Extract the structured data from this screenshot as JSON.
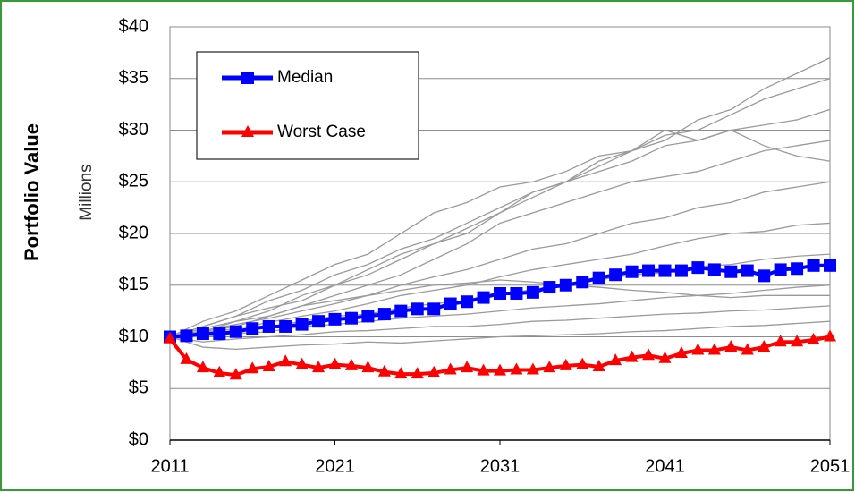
{
  "chart_data": {
    "type": "line",
    "y_label": "Portfolio Value",
    "y_unit_label": "Millions",
    "x": [
      2011,
      2012,
      2013,
      2014,
      2015,
      2016,
      2017,
      2018,
      2019,
      2020,
      2021,
      2022,
      2023,
      2024,
      2025,
      2026,
      2027,
      2028,
      2029,
      2030,
      2031,
      2032,
      2033,
      2034,
      2035,
      2036,
      2037,
      2038,
      2039,
      2040,
      2041,
      2042,
      2043,
      2044,
      2045,
      2046,
      2047,
      2048,
      2049,
      2050,
      2051
    ],
    "series": [
      {
        "name": "Median",
        "color": "#0000ff",
        "marker": "square",
        "values": [
          10,
          10.1,
          10.3,
          10.3,
          10.5,
          10.8,
          11,
          11,
          11.2,
          11.5,
          11.7,
          11.8,
          12,
          12.2,
          12.5,
          12.7,
          12.7,
          13.2,
          13.4,
          13.8,
          14.2,
          14.2,
          14.3,
          14.8,
          15,
          15.3,
          15.7,
          16,
          16.3,
          16.4,
          16.4,
          16.4,
          16.7,
          16.5,
          16.3,
          16.4,
          15.9,
          16.5,
          16.6,
          16.9,
          16.9
        ]
      },
      {
        "name": "Worst Case",
        "color": "#ff0000",
        "marker": "triangle",
        "values": [
          9.8,
          7.8,
          7,
          6.5,
          6.3,
          6.9,
          7.1,
          7.6,
          7.3,
          7,
          7.3,
          7.2,
          7,
          6.6,
          6.4,
          6.4,
          6.5,
          6.8,
          7,
          6.7,
          6.7,
          6.8,
          6.8,
          7,
          7.2,
          7.3,
          7.1,
          7.7,
          8,
          8.2,
          7.9,
          8.4,
          8.7,
          8.7,
          9,
          8.7,
          9,
          9.5,
          9.5,
          9.7,
          10
        ]
      }
    ],
    "simulations": {
      "color": "#9a9a9a",
      "x": [
        2011,
        2013,
        2015,
        2017,
        2019,
        2021,
        2023,
        2025,
        2027,
        2029,
        2031,
        2033,
        2035,
        2037,
        2039,
        2041,
        2043,
        2045,
        2047,
        2049,
        2051
      ],
      "series": [
        [
          10,
          11,
          12,
          13.5,
          14.5,
          16,
          17,
          18.5,
          19.5,
          21,
          22.5,
          24,
          25,
          26.5,
          28,
          29,
          31,
          32,
          34,
          35.5,
          37
        ],
        [
          10,
          10.8,
          11.5,
          12.5,
          14,
          15,
          16.5,
          18,
          19,
          20,
          22,
          23.5,
          25,
          27,
          28,
          29.5,
          30,
          31.5,
          33,
          34,
          35
        ],
        [
          10,
          11,
          12,
          12.8,
          13.5,
          15,
          16,
          17.5,
          19,
          20.5,
          22,
          24,
          25,
          26,
          27,
          28.5,
          29,
          30,
          30.5,
          31,
          32
        ],
        [
          10,
          10.5,
          11.5,
          12,
          13,
          14,
          15,
          16,
          17.5,
          19,
          21,
          22,
          23,
          24,
          25,
          25.5,
          26,
          27,
          28,
          28.5,
          29
        ],
        [
          10,
          10.6,
          11.2,
          11.8,
          12.5,
          13.2,
          14,
          15,
          15.8,
          16.5,
          17.5,
          18.5,
          19,
          20,
          21,
          21.5,
          22.5,
          23,
          24,
          24.5,
          25
        ],
        [
          10,
          10.4,
          10.8,
          11.4,
          12,
          12.5,
          13.2,
          14,
          14.5,
          15,
          15.8,
          16.5,
          17,
          17.5,
          18,
          18.8,
          19.5,
          20,
          20.2,
          20.8,
          21
        ],
        [
          10,
          10.2,
          10.6,
          11,
          11.5,
          12,
          12.2,
          12.8,
          13.2,
          13.5,
          14,
          14.6,
          15,
          15.5,
          16,
          16.2,
          16.8,
          17,
          17.5,
          17.8,
          18
        ],
        [
          10,
          10,
          10.3,
          10.5,
          11,
          11.2,
          11.5,
          11.8,
          12,
          12.2,
          12.5,
          12.8,
          13,
          13.2,
          13.5,
          13.8,
          14,
          14.2,
          14.5,
          14.8,
          15
        ],
        [
          10,
          9.5,
          9.8,
          10,
          10.2,
          10.5,
          10.6,
          10.8,
          11,
          11,
          11.2,
          11.5,
          11.6,
          11.8,
          12,
          12.2,
          12.3,
          12.5,
          12.6,
          12.8,
          13
        ],
        [
          10,
          9,
          8.8,
          9,
          9.2,
          9.3,
          9.5,
          9.4,
          9.6,
          9.8,
          10,
          10.1,
          10.2,
          10.3,
          10.5,
          10.6,
          10.8,
          11,
          11.1,
          11.3,
          11.5
        ],
        [
          10,
          11.5,
          12.5,
          14,
          15.5,
          17,
          18,
          20,
          22,
          23,
          24.5,
          25,
          26,
          27.5,
          28,
          30,
          29,
          30,
          28.5,
          27.5,
          27
        ],
        [
          10,
          10.5,
          11,
          12,
          13,
          13.5,
          14,
          14.5,
          15,
          15.2,
          15.5,
          15.3,
          15,
          14.8,
          14.5,
          14.3,
          14,
          13.8,
          14,
          14,
          14
        ]
      ]
    },
    "xlim": [
      2011,
      2051
    ],
    "xticks": [
      2011,
      2021,
      2031,
      2041,
      2051
    ],
    "ylim": [
      0,
      40
    ],
    "yticks": [
      {
        "value": 0,
        "label": "$0"
      },
      {
        "value": 5,
        "label": "$5"
      },
      {
        "value": 10,
        "label": "$10"
      },
      {
        "value": 15,
        "label": "$15"
      },
      {
        "value": 20,
        "label": "$20"
      },
      {
        "value": 25,
        "label": "$25"
      },
      {
        "value": 30,
        "label": "$30"
      },
      {
        "value": 35,
        "label": "$35"
      },
      {
        "value": 40,
        "label": "$40"
      }
    ],
    "grid": true,
    "legend": "top-left"
  }
}
